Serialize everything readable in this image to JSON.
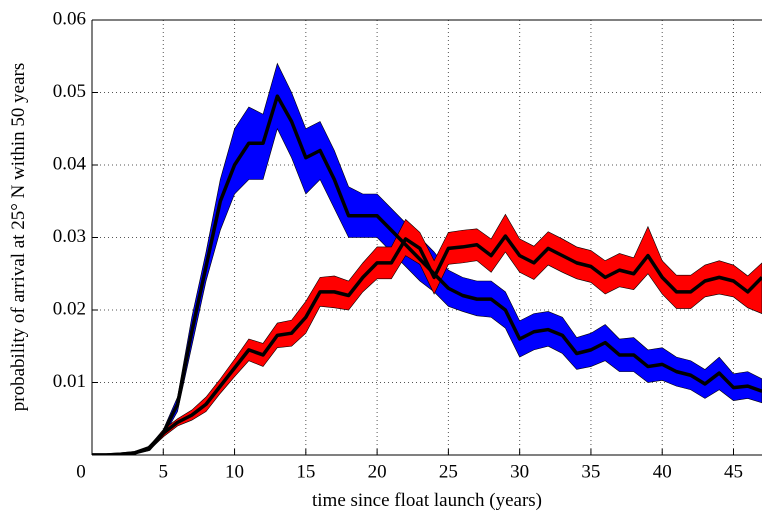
{
  "chart_data": {
    "type": "band-line",
    "xlabel": "time since float launch (years)",
    "ylabel": "probability of arrival at 25° N within 50 years",
    "xlim": [
      0,
      47
    ],
    "ylim": [
      0,
      0.06
    ],
    "xticks": [
      0,
      5,
      10,
      15,
      20,
      25,
      30,
      35,
      40,
      45
    ],
    "yticks": [
      0.01,
      0.02,
      0.03,
      0.04,
      0.05,
      0.06
    ],
    "grid": true,
    "line_color": "#000000",
    "x": [
      0,
      1,
      2,
      3,
      4,
      5,
      6,
      7,
      8,
      9,
      10,
      11,
      12,
      13,
      14,
      15,
      16,
      17,
      18,
      19,
      20,
      21,
      22,
      23,
      24,
      25,
      26,
      27,
      28,
      29,
      30,
      31,
      32,
      33,
      34,
      35,
      36,
      37,
      38,
      39,
      40,
      41,
      42,
      43,
      44,
      45,
      46,
      47
    ],
    "series": [
      {
        "color": "#0000ff",
        "values": [
          0,
          0,
          0.0001,
          0.0003,
          0.001,
          0.003,
          0.007,
          0.017,
          0.026,
          0.035,
          0.04,
          0.043,
          0.043,
          0.0495,
          0.046,
          0.041,
          0.042,
          0.038,
          0.033,
          0.033,
          0.033,
          0.031,
          0.029,
          0.027,
          0.025,
          0.023,
          0.022,
          0.0215,
          0.0215,
          0.02,
          0.016,
          0.017,
          0.0173,
          0.0165,
          0.014,
          0.0145,
          0.0155,
          0.0138,
          0.0138,
          0.0122,
          0.0125,
          0.0115,
          0.011,
          0.0098,
          0.0113,
          0.0093,
          0.0095,
          0.0088
        ],
        "lower": [
          0,
          0,
          0.0001,
          0.0002,
          0.0008,
          0.0025,
          0.006,
          0.015,
          0.024,
          0.031,
          0.036,
          0.038,
          0.038,
          0.045,
          0.041,
          0.036,
          0.038,
          0.034,
          0.03,
          0.03,
          0.03,
          0.028,
          0.026,
          0.024,
          0.0225,
          0.0205,
          0.0198,
          0.0192,
          0.019,
          0.0175,
          0.0135,
          0.0145,
          0.015,
          0.014,
          0.0118,
          0.0122,
          0.013,
          0.0115,
          0.0115,
          0.01,
          0.0103,
          0.0095,
          0.009,
          0.0078,
          0.009,
          0.0075,
          0.0078,
          0.0072
        ],
        "upper": [
          0,
          0,
          0.0001,
          0.0004,
          0.0012,
          0.0035,
          0.008,
          0.019,
          0.028,
          0.038,
          0.045,
          0.048,
          0.047,
          0.054,
          0.05,
          0.045,
          0.046,
          0.042,
          0.037,
          0.036,
          0.036,
          0.034,
          0.032,
          0.03,
          0.028,
          0.0255,
          0.0245,
          0.024,
          0.024,
          0.0225,
          0.0185,
          0.0195,
          0.0198,
          0.019,
          0.0162,
          0.0168,
          0.018,
          0.016,
          0.0162,
          0.0145,
          0.0148,
          0.0135,
          0.013,
          0.0118,
          0.0135,
          0.0112,
          0.0115,
          0.0105
        ]
      },
      {
        "color": "#ff0000",
        "values": [
          0,
          0,
          0.0001,
          0.0003,
          0.0008,
          0.003,
          0.0045,
          0.0055,
          0.007,
          0.0095,
          0.012,
          0.0145,
          0.0138,
          0.0165,
          0.0168,
          0.019,
          0.0225,
          0.0225,
          0.022,
          0.0245,
          0.0265,
          0.0265,
          0.0298,
          0.0285,
          0.0245,
          0.0285,
          0.0287,
          0.029,
          0.0275,
          0.0302,
          0.0275,
          0.0265,
          0.0285,
          0.0275,
          0.0265,
          0.026,
          0.0245,
          0.0255,
          0.025,
          0.0275,
          0.0245,
          0.0225,
          0.0225,
          0.024,
          0.0245,
          0.024,
          0.0225,
          0.0245
        ],
        "lower": [
          0,
          0,
          0.0001,
          0.0002,
          0.0006,
          0.0025,
          0.004,
          0.0048,
          0.006,
          0.0085,
          0.0108,
          0.013,
          0.0122,
          0.0148,
          0.015,
          0.0168,
          0.0205,
          0.0203,
          0.02,
          0.0225,
          0.0243,
          0.0243,
          0.0275,
          0.0263,
          0.0222,
          0.0263,
          0.0265,
          0.0268,
          0.0252,
          0.028,
          0.0252,
          0.0242,
          0.0262,
          0.0252,
          0.0243,
          0.0238,
          0.0222,
          0.0232,
          0.0228,
          0.025,
          0.0222,
          0.0202,
          0.0202,
          0.0218,
          0.0222,
          0.0218,
          0.0203,
          0.0195
        ],
        "upper": [
          0,
          0,
          0.0001,
          0.0004,
          0.001,
          0.0035,
          0.005,
          0.0062,
          0.008,
          0.0105,
          0.0132,
          0.016,
          0.0154,
          0.0182,
          0.0186,
          0.0212,
          0.0245,
          0.0247,
          0.024,
          0.0265,
          0.0287,
          0.0287,
          0.0325,
          0.0307,
          0.0268,
          0.0307,
          0.031,
          0.0312,
          0.0298,
          0.0332,
          0.0298,
          0.0288,
          0.0308,
          0.0298,
          0.0287,
          0.0282,
          0.0268,
          0.0278,
          0.0272,
          0.0315,
          0.0268,
          0.0248,
          0.0248,
          0.0262,
          0.0268,
          0.0262,
          0.0247,
          0.0265
        ]
      }
    ]
  }
}
